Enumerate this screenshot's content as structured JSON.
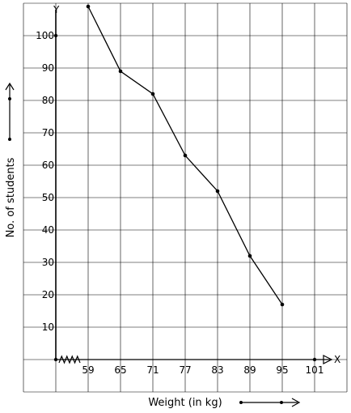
{
  "chart_data": {
    "type": "line",
    "xlabel": "Weight (in kg)",
    "ylabel": "No. of students",
    "x_axis_letter": "X",
    "y_axis_letter": "Y",
    "x": [
      59,
      65,
      71,
      77,
      83,
      89,
      95
    ],
    "values": [
      109,
      89,
      82,
      63,
      52,
      32,
      17
    ],
    "x_ticks": [
      59,
      65,
      71,
      77,
      83,
      89,
      95,
      101
    ],
    "y_ticks": [
      10,
      20,
      30,
      40,
      50,
      60,
      70,
      80,
      90,
      100
    ],
    "x_tick_labels": [
      "59",
      "65",
      "71",
      "77",
      "83",
      "89",
      "95",
      "101"
    ],
    "y_tick_labels": [
      "10",
      "20",
      "30",
      "40",
      "50",
      "60",
      "70",
      "80",
      "90",
      "100"
    ],
    "xlim": [
      53,
      101
    ],
    "ylim": [
      0,
      110
    ],
    "grid": true,
    "x_axis_break": true,
    "colors": {
      "line": "#000000",
      "grid": "#000000"
    }
  }
}
